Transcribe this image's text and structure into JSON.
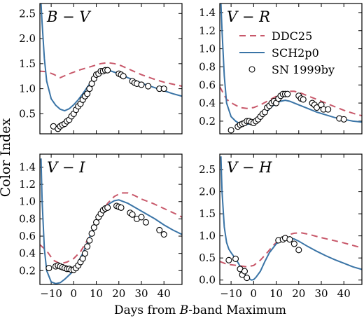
{
  "figure": {
    "ylabel": "Color Index",
    "xlabel_parts": [
      "Days from ",
      "B",
      "-band Maximum"
    ],
    "xlim": [
      -15,
      48
    ],
    "xticks": [
      -10,
      0,
      10,
      20,
      30,
      40
    ],
    "legend": {
      "location": "upper-right of top-right panel",
      "entries": [
        {
          "label": "DDC25",
          "style": "dashed",
          "color": "#c8586a"
        },
        {
          "label": "SCH2p0",
          "style": "solid",
          "color": "#3a74a6"
        },
        {
          "label": "SN 1999by",
          "style": "open-circle",
          "color": "#000000"
        }
      ]
    }
  },
  "colors": {
    "ddc25": "#c8586a",
    "sch2p0": "#3a74a6",
    "errorbar": "#999999"
  },
  "chart_data": [
    {
      "type": "line",
      "panel": "top-left",
      "title": [
        "B",
        " − ",
        "V"
      ],
      "ylim": [
        0.1,
        2.7
      ],
      "yticks": [
        0.5,
        1.0,
        1.5,
        2.0,
        2.5
      ],
      "series": [
        {
          "name": "DDC25",
          "x": [
            -15,
            -12,
            -9,
            -6,
            -3,
            0,
            3,
            6,
            9,
            12,
            15,
            18,
            21,
            24,
            27,
            30,
            35,
            40,
            45,
            48
          ],
          "y": [
            1.35,
            1.34,
            1.29,
            1.22,
            1.28,
            1.33,
            1.38,
            1.42,
            1.46,
            1.5,
            1.52,
            1.5,
            1.46,
            1.4,
            1.34,
            1.28,
            1.2,
            1.13,
            1.08,
            1.05
          ]
        },
        {
          "name": "SCH2p0",
          "x": [
            -14.5,
            -14,
            -13,
            -12,
            -10,
            -8,
            -6,
            -4,
            -2,
            0,
            2,
            4,
            6,
            8,
            10,
            12,
            14,
            16,
            18,
            20,
            24,
            28,
            32,
            36,
            40,
            44,
            48
          ],
          "y": [
            2.7,
            2.3,
            1.6,
            1.15,
            0.8,
            0.67,
            0.59,
            0.56,
            0.6,
            0.68,
            0.78,
            0.9,
            1.03,
            1.15,
            1.25,
            1.32,
            1.36,
            1.36,
            1.33,
            1.3,
            1.22,
            1.15,
            1.08,
            1.02,
            0.96,
            0.9,
            0.85
          ]
        },
        {
          "name": "SN 1999by",
          "x": [
            -9,
            -7,
            -6,
            -5,
            -4,
            -3,
            -2,
            -1,
            0,
            1,
            2,
            3,
            4,
            5,
            6,
            7,
            8,
            9,
            10,
            11,
            12,
            13,
            14,
            15,
            20,
            21,
            22,
            26,
            27,
            28,
            30,
            33,
            38,
            40
          ],
          "y": [
            0.25,
            0.2,
            0.25,
            0.28,
            0.3,
            0.35,
            0.38,
            0.45,
            0.5,
            0.58,
            0.65,
            0.7,
            0.78,
            0.85,
            0.9,
            1.0,
            1.1,
            1.2,
            1.28,
            1.3,
            1.35,
            1.35,
            1.37,
            1.37,
            1.3,
            1.28,
            1.25,
            1.15,
            1.12,
            1.1,
            1.08,
            1.05,
            1.0,
            1.0
          ]
        }
      ]
    },
    {
      "type": "line",
      "panel": "top-right",
      "title": [
        "V",
        " − ",
        "R"
      ],
      "ylim": [
        0.06,
        1.5
      ],
      "yticks": [
        0.2,
        0.4,
        0.6,
        0.8,
        1.0,
        1.2,
        1.4
      ],
      "series": [
        {
          "name": "DDC25",
          "x": [
            -15,
            -12,
            -9,
            -6,
            -3,
            0,
            3,
            6,
            9,
            12,
            15,
            18,
            21,
            24,
            27,
            30,
            35,
            40,
            45,
            48
          ],
          "y": [
            0.58,
            0.44,
            0.39,
            0.35,
            0.34,
            0.35,
            0.38,
            0.42,
            0.46,
            0.5,
            0.53,
            0.53,
            0.51,
            0.48,
            0.45,
            0.42,
            0.37,
            0.32,
            0.28,
            0.26
          ]
        },
        {
          "name": "SCH2p0",
          "x": [
            -14.5,
            -14,
            -13,
            -12,
            -10,
            -8,
            -6,
            -4,
            -2,
            0,
            2,
            4,
            6,
            8,
            10,
            12,
            14,
            16,
            18,
            20,
            24,
            28,
            32,
            36,
            40,
            44,
            48
          ],
          "y": [
            1.5,
            1.2,
            0.7,
            0.4,
            0.25,
            0.2,
            0.17,
            0.16,
            0.17,
            0.19,
            0.22,
            0.26,
            0.31,
            0.36,
            0.4,
            0.42,
            0.43,
            0.42,
            0.4,
            0.38,
            0.34,
            0.3,
            0.27,
            0.24,
            0.22,
            0.2,
            0.19
          ]
        },
        {
          "name": "SN 1999by",
          "x": [
            -10,
            -7,
            -6,
            -5,
            -4,
            -3,
            -2,
            -1,
            0,
            1,
            2,
            3,
            4,
            5,
            6,
            7,
            8,
            9,
            10,
            11,
            12,
            13,
            14,
            15,
            20,
            21,
            22,
            26,
            27,
            28,
            30,
            31,
            33,
            38,
            40
          ],
          "y": [
            0.1,
            0.14,
            0.16,
            0.17,
            0.18,
            0.2,
            0.2,
            0.19,
            0.18,
            0.2,
            0.22,
            0.25,
            0.28,
            0.3,
            0.35,
            0.37,
            0.4,
            0.42,
            0.4,
            0.45,
            0.48,
            0.5,
            0.5,
            0.5,
            0.48,
            0.45,
            0.44,
            0.4,
            0.38,
            0.35,
            0.38,
            0.33,
            0.33,
            0.23,
            0.22
          ]
        }
      ]
    },
    {
      "type": "line",
      "panel": "bottom-left",
      "title": [
        "V",
        " − ",
        "I"
      ],
      "ylim": [
        0.04,
        1.55
      ],
      "yticks": [
        0.2,
        0.4,
        0.6,
        0.8,
        1.0,
        1.2,
        1.4
      ],
      "series": [
        {
          "name": "DDC25",
          "x": [
            -15,
            -12,
            -9,
            -6,
            -3,
            0,
            3,
            6,
            9,
            12,
            15,
            18,
            21,
            24,
            27,
            30,
            35,
            40,
            45,
            48
          ],
          "y": [
            0.5,
            0.43,
            0.32,
            0.28,
            0.3,
            0.34,
            0.42,
            0.55,
            0.7,
            0.85,
            0.98,
            1.06,
            1.1,
            1.1,
            1.07,
            1.03,
            0.98,
            0.92,
            0.86,
            0.82
          ]
        },
        {
          "name": "SCH2p0",
          "x": [
            -14.5,
            -14,
            -13,
            -12,
            -10,
            -8,
            -6,
            -4,
            -2,
            0,
            2,
            4,
            6,
            8,
            10,
            12,
            14,
            16,
            18,
            20,
            24,
            28,
            32,
            36,
            40,
            44,
            48
          ],
          "y": [
            1.5,
            1.0,
            0.45,
            0.2,
            0.07,
            0.05,
            0.06,
            0.1,
            0.15,
            0.2,
            0.3,
            0.4,
            0.52,
            0.65,
            0.76,
            0.85,
            0.93,
            0.98,
            1.01,
            1.02,
            0.98,
            0.92,
            0.86,
            0.8,
            0.73,
            0.67,
            0.62
          ]
        },
        {
          "name": "SN 1999by",
          "x": [
            -11,
            -8,
            -7,
            -6,
            -5,
            -4,
            -3,
            -2,
            -1,
            0,
            1,
            2,
            3,
            4,
            5,
            6,
            7,
            8,
            9,
            10,
            11,
            12,
            13,
            14,
            15,
            19,
            20,
            21,
            25,
            26,
            28,
            30,
            32,
            38,
            40
          ],
          "y": [
            0.23,
            0.25,
            0.26,
            0.25,
            0.24,
            0.23,
            0.22,
            0.22,
            0.21,
            0.21,
            0.23,
            0.26,
            0.3,
            0.34,
            0.4,
            0.48,
            0.55,
            0.63,
            0.7,
            0.76,
            0.82,
            0.86,
            0.9,
            0.92,
            0.93,
            0.95,
            0.94,
            0.93,
            0.87,
            0.85,
            0.8,
            0.82,
            0.76,
            0.67,
            0.62
          ]
        }
      ]
    },
    {
      "type": "line",
      "panel": "bottom-right",
      "title": [
        "V",
        " − ",
        "H"
      ],
      "ylim": [
        -0.1,
        2.85
      ],
      "yticks": [
        0.0,
        0.5,
        1.0,
        1.5,
        2.0,
        2.5
      ],
      "series": [
        {
          "name": "DDC25",
          "x": [
            -15,
            -12,
            -9,
            -6,
            -3,
            0,
            3,
            6,
            9,
            12,
            15,
            18,
            21,
            24,
            27,
            30,
            35,
            40,
            45,
            48
          ],
          "y": [
            0.42,
            0.36,
            0.34,
            0.32,
            0.3,
            0.33,
            0.45,
            0.62,
            0.8,
            0.94,
            1.02,
            1.06,
            1.07,
            1.04,
            1.0,
            0.96,
            0.9,
            0.84,
            0.77,
            0.73
          ]
        },
        {
          "name": "SCH2p0",
          "x": [
            -14.5,
            -14,
            -13,
            -12,
            -11,
            -10,
            -9,
            -7,
            -5,
            -3,
            -1,
            0,
            1,
            3,
            5,
            7,
            10,
            13,
            16,
            18,
            20,
            24,
            28,
            32,
            36,
            40,
            44,
            48
          ],
          "y": [
            2.8,
            2.0,
            1.2,
            0.85,
            0.7,
            0.62,
            0.55,
            0.4,
            0.22,
            0.07,
            0.0,
            0.01,
            0.06,
            0.2,
            0.42,
            0.62,
            0.82,
            0.92,
            0.95,
            0.93,
            0.88,
            0.76,
            0.65,
            0.55,
            0.46,
            0.38,
            0.3,
            0.24
          ]
        },
        {
          "name": "SN 1999by",
          "x": [
            -11,
            -8,
            -6,
            -5,
            -4,
            -3,
            11,
            13,
            14,
            16,
            18,
            20
          ],
          "y": [
            0.45,
            0.48,
            0.25,
            0.12,
            0.2,
            0.05,
            0.9,
            0.92,
            0.95,
            0.92,
            0.82,
            0.68
          ]
        }
      ]
    }
  ]
}
